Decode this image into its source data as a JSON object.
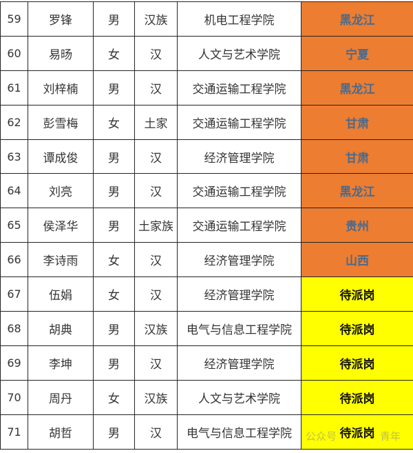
{
  "colors": {
    "assigned": "#ED7D31",
    "pending": "#FFFF00",
    "assigned_text": "#4A6A8C"
  },
  "rows": [
    {
      "no": "59",
      "name": "罗锋",
      "gender": "男",
      "ethnicity": "汉族",
      "college": "机电工程学院",
      "destination": "黑龙江",
      "status": "assigned"
    },
    {
      "no": "60",
      "name": "易旸",
      "gender": "女",
      "ethnicity": "汉",
      "college": "人文与艺术学院",
      "destination": "宁夏",
      "status": "assigned"
    },
    {
      "no": "61",
      "name": "刘梓楠",
      "gender": "男",
      "ethnicity": "汉",
      "college": "交通运输工程学院",
      "destination": "黑龙江",
      "status": "assigned"
    },
    {
      "no": "62",
      "name": "彭雪梅",
      "gender": "女",
      "ethnicity": "土家",
      "college": "交通运输工程学院",
      "destination": "甘肃",
      "status": "assigned"
    },
    {
      "no": "63",
      "name": "谭成俊",
      "gender": "男",
      "ethnicity": "汉",
      "college": "经济管理学院",
      "destination": "甘肃",
      "status": "assigned"
    },
    {
      "no": "64",
      "name": "刘亮",
      "gender": "男",
      "ethnicity": "汉",
      "college": "交通运输工程学院",
      "destination": "黑龙江",
      "status": "assigned"
    },
    {
      "no": "65",
      "name": "侯泽华",
      "gender": "男",
      "ethnicity": "土家族",
      "college": "交通运输工程学院",
      "destination": "贵州",
      "status": "assigned"
    },
    {
      "no": "66",
      "name": "李诗雨",
      "gender": "女",
      "ethnicity": "汉",
      "college": "经济管理学院",
      "destination": "山西",
      "status": "assigned"
    },
    {
      "no": "67",
      "name": "伍娟",
      "gender": "女",
      "ethnicity": "汉",
      "college": "经济管理学院",
      "destination": "待派岗",
      "status": "pending"
    },
    {
      "no": "68",
      "name": "胡典",
      "gender": "男",
      "ethnicity": "汉族",
      "college": "电气与信息工程学院",
      "destination": "待派岗",
      "status": "pending"
    },
    {
      "no": "69",
      "name": "李坤",
      "gender": "男",
      "ethnicity": "汉",
      "college": "经济管理学院",
      "destination": "待派岗",
      "status": "pending"
    },
    {
      "no": "70",
      "name": "周丹",
      "gender": "女",
      "ethnicity": "汉族",
      "college": "人文与艺术学院",
      "destination": "待派岗",
      "status": "pending"
    },
    {
      "no": "71",
      "name": "胡哲",
      "gender": "男",
      "ethnicity": "汉",
      "college": "电气与信息工程学院",
      "destination": "待派岗",
      "status": "pending"
    }
  ],
  "watermark": {
    "left": "公众号",
    "right": "青年"
  }
}
